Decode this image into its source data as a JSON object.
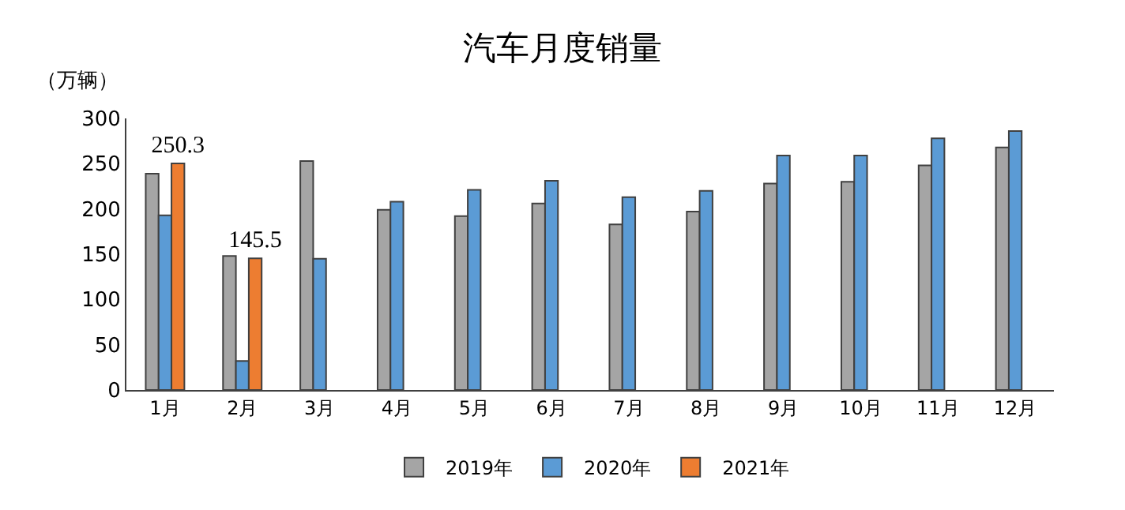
{
  "chart_data": {
    "type": "bar",
    "title": "汽车月度销量",
    "ylabel": "（万辆）",
    "categories": [
      "1月",
      "2月",
      "3月",
      "4月",
      "5月",
      "6月",
      "7月",
      "8月",
      "9月",
      "10月",
      "11月",
      "12月"
    ],
    "series": [
      {
        "name": "2019年",
        "color": "#a5a5a5",
        "values": [
          239,
          148,
          253,
          199,
          192,
          206,
          183,
          197,
          228,
          230,
          248,
          268
        ]
      },
      {
        "name": "2020年",
        "color": "#5b9bd5",
        "values": [
          193,
          32,
          145,
          208,
          221,
          231,
          213,
          220,
          259,
          259,
          278,
          286
        ]
      },
      {
        "name": "2021年",
        "color": "#ed7d31",
        "values": [
          250.3,
          145.5,
          null,
          null,
          null,
          null,
          null,
          null,
          null,
          null,
          null,
          null
        ],
        "value_labels": [
          "250.3",
          "145.5",
          null,
          null,
          null,
          null,
          null,
          null,
          null,
          null,
          null,
          null
        ]
      }
    ],
    "ylim": [
      0,
      300
    ],
    "yticks": [
      0,
      50,
      100,
      150,
      200,
      250,
      300
    ],
    "legend": "bottom"
  }
}
